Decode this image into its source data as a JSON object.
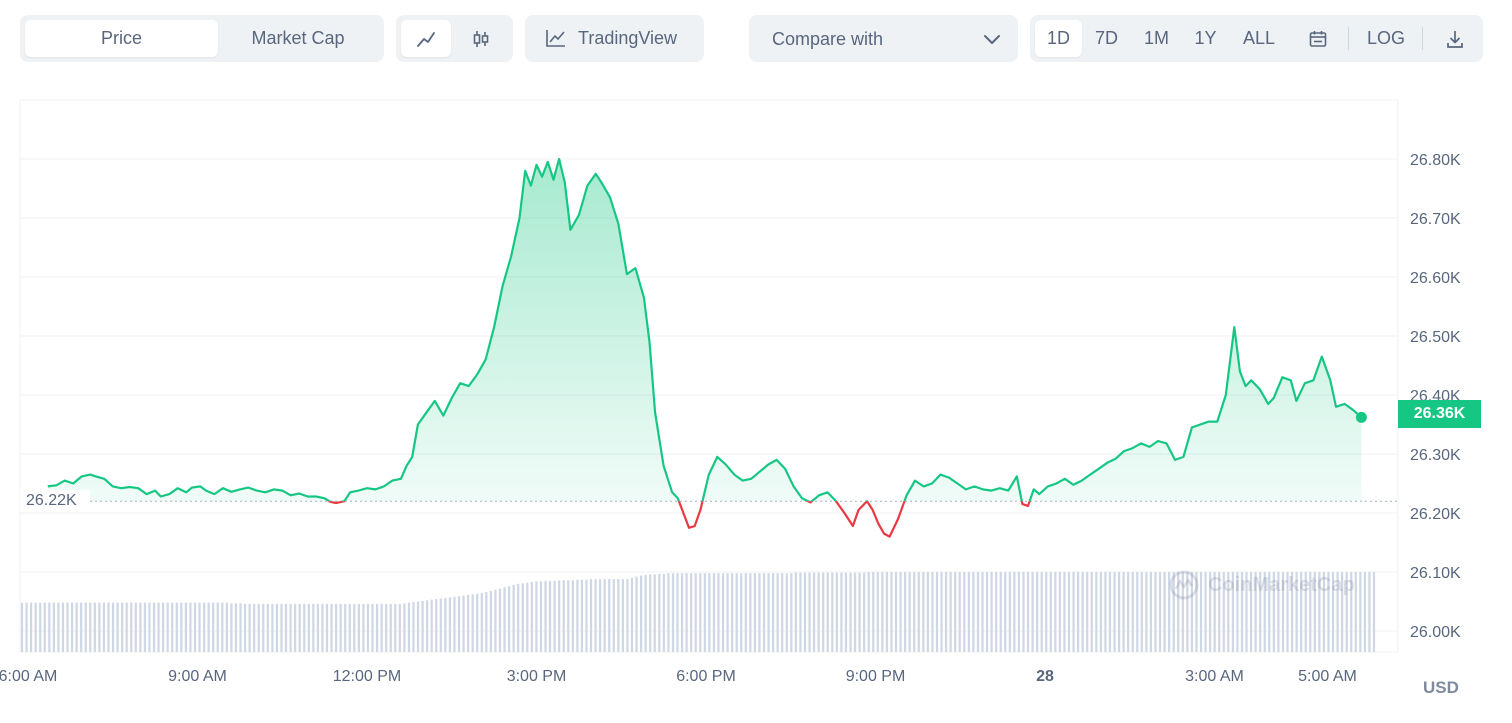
{
  "toolbar": {
    "tabs": [
      {
        "label": "Price",
        "active": true
      },
      {
        "label": "Market Cap",
        "active": false
      }
    ],
    "chart_types": [
      {
        "icon": "line-chart-icon",
        "active": true
      },
      {
        "icon": "candlestick-icon",
        "active": false
      }
    ],
    "tradingview_label": "TradingView",
    "compare_label": "Compare with",
    "timeframes": [
      {
        "label": "1D",
        "active": true
      },
      {
        "label": "7D",
        "active": false
      },
      {
        "label": "1M",
        "active": false
      },
      {
        "label": "1Y",
        "active": false
      },
      {
        "label": "ALL",
        "active": false
      }
    ],
    "log_label": "LOG"
  },
  "reference_label": "26.22K",
  "current_price_label": "26.36K",
  "currency_label": "USD",
  "watermark_text": "CoinMarketCap",
  "colors": {
    "up": "#16c784",
    "down": "#ea3943",
    "volume": "#cfd6e4",
    "grid": "#eff2f5"
  },
  "chart_data": {
    "type": "area",
    "baseline": 26220,
    "ylim": [
      25960,
      26900
    ],
    "y_ticks": [
      {
        "label": "26.80K",
        "value": 26800
      },
      {
        "label": "26.70K",
        "value": 26700
      },
      {
        "label": "26.60K",
        "value": 26600
      },
      {
        "label": "26.50K",
        "value": 26500
      },
      {
        "label": "26.40K",
        "value": 26400
      },
      {
        "label": "26.30K",
        "value": 26300
      },
      {
        "label": "26.20K",
        "value": 26200
      },
      {
        "label": "26.10K",
        "value": 26100
      },
      {
        "label": "26.00K",
        "value": 26000
      }
    ],
    "x_ticks": [
      {
        "label": "6:00 AM",
        "hour": 0,
        "bold": false
      },
      {
        "label": "9:00 AM",
        "hour": 3,
        "bold": false
      },
      {
        "label": "12:00 PM",
        "hour": 6,
        "bold": false
      },
      {
        "label": "3:00 PM",
        "hour": 9,
        "bold": false
      },
      {
        "label": "6:00 PM",
        "hour": 12,
        "bold": false
      },
      {
        "label": "9:00 PM",
        "hour": 15,
        "bold": false
      },
      {
        "label": "28",
        "hour": 18,
        "bold": true
      },
      {
        "label": "3:00 AM",
        "hour": 21,
        "bold": false
      },
      {
        "label": "5:00 AM",
        "hour": 23,
        "bold": false
      }
    ],
    "xlim_hours": [
      0,
      24
    ],
    "series": [
      {
        "values": [
          [
            0.35,
            26245
          ],
          [
            0.5,
            26247
          ],
          [
            0.65,
            26255
          ],
          [
            0.8,
            26250
          ],
          [
            0.95,
            26262
          ],
          [
            1.1,
            26265
          ],
          [
            1.2,
            26262
          ],
          [
            1.35,
            26258
          ],
          [
            1.5,
            26245
          ],
          [
            1.65,
            26242
          ],
          [
            1.8,
            26244
          ],
          [
            1.95,
            26242
          ],
          [
            2.1,
            26232
          ],
          [
            2.25,
            26238
          ],
          [
            2.35,
            26228
          ],
          [
            2.5,
            26232
          ],
          [
            2.65,
            26242
          ],
          [
            2.8,
            26235
          ],
          [
            2.9,
            26243
          ],
          [
            3.05,
            26245
          ],
          [
            3.15,
            26238
          ],
          [
            3.3,
            26232
          ],
          [
            3.45,
            26242
          ],
          [
            3.6,
            26236
          ],
          [
            3.75,
            26240
          ],
          [
            3.9,
            26243
          ],
          [
            4.05,
            26238
          ],
          [
            4.2,
            26235
          ],
          [
            4.35,
            26240
          ],
          [
            4.5,
            26238
          ],
          [
            4.65,
            26230
          ],
          [
            4.8,
            26233
          ],
          [
            4.95,
            26228
          ],
          [
            5.1,
            26228
          ],
          [
            5.25,
            26225
          ],
          [
            5.35,
            26219
          ],
          [
            5.45,
            26217
          ],
          [
            5.6,
            26220
          ],
          [
            5.7,
            26235
          ],
          [
            5.85,
            26238
          ],
          [
            6.0,
            26242
          ],
          [
            6.15,
            26240
          ],
          [
            6.3,
            26245
          ],
          [
            6.45,
            26255
          ],
          [
            6.6,
            26258
          ],
          [
            6.7,
            26280
          ],
          [
            6.8,
            26295
          ],
          [
            6.9,
            26350
          ],
          [
            7.05,
            26370
          ],
          [
            7.2,
            26390
          ],
          [
            7.35,
            26365
          ],
          [
            7.5,
            26395
          ],
          [
            7.65,
            26420
          ],
          [
            7.8,
            26415
          ],
          [
            7.95,
            26435
          ],
          [
            8.1,
            26460
          ],
          [
            8.25,
            26515
          ],
          [
            8.4,
            26585
          ],
          [
            8.55,
            26635
          ],
          [
            8.7,
            26700
          ],
          [
            8.8,
            26780
          ],
          [
            8.9,
            26755
          ],
          [
            9.0,
            26790
          ],
          [
            9.1,
            26770
          ],
          [
            9.2,
            26795
          ],
          [
            9.3,
            26765
          ],
          [
            9.4,
            26800
          ],
          [
            9.5,
            26760
          ],
          [
            9.6,
            26680
          ],
          [
            9.75,
            26705
          ],
          [
            9.9,
            26755
          ],
          [
            10.05,
            26775
          ],
          [
            10.15,
            26760
          ],
          [
            10.3,
            26735
          ],
          [
            10.45,
            26690
          ],
          [
            10.6,
            26605
          ],
          [
            10.75,
            26615
          ],
          [
            10.9,
            26565
          ],
          [
            11.0,
            26490
          ],
          [
            11.1,
            26370
          ],
          [
            11.25,
            26280
          ],
          [
            11.4,
            26235
          ],
          [
            11.5,
            26225
          ],
          [
            11.6,
            26200
          ],
          [
            11.7,
            26175
          ],
          [
            11.8,
            26178
          ],
          [
            11.9,
            26205
          ],
          [
            12.05,
            26265
          ],
          [
            12.2,
            26295
          ],
          [
            12.35,
            26282
          ],
          [
            12.5,
            26265
          ],
          [
            12.65,
            26255
          ],
          [
            12.8,
            26258
          ],
          [
            12.95,
            26270
          ],
          [
            13.1,
            26282
          ],
          [
            13.25,
            26290
          ],
          [
            13.4,
            26275
          ],
          [
            13.55,
            26245
          ],
          [
            13.7,
            26225
          ],
          [
            13.85,
            26218
          ],
          [
            14.0,
            26230
          ],
          [
            14.15,
            26235
          ],
          [
            14.3,
            26220
          ],
          [
            14.45,
            26200
          ],
          [
            14.6,
            26178
          ],
          [
            14.7,
            26205
          ],
          [
            14.85,
            26220
          ],
          [
            14.95,
            26205
          ],
          [
            15.05,
            26182
          ],
          [
            15.15,
            26165
          ],
          [
            15.25,
            26160
          ],
          [
            15.4,
            26190
          ],
          [
            15.55,
            26230
          ],
          [
            15.7,
            26255
          ],
          [
            15.85,
            26245
          ],
          [
            16.0,
            26250
          ],
          [
            16.15,
            26265
          ],
          [
            16.3,
            26260
          ],
          [
            16.45,
            26250
          ],
          [
            16.6,
            26240
          ],
          [
            16.75,
            26245
          ],
          [
            16.9,
            26240
          ],
          [
            17.05,
            26238
          ],
          [
            17.2,
            26242
          ],
          [
            17.35,
            26238
          ],
          [
            17.5,
            26262
          ],
          [
            17.6,
            26215
          ],
          [
            17.7,
            26212
          ],
          [
            17.8,
            26240
          ],
          [
            17.9,
            26232
          ],
          [
            18.05,
            26245
          ],
          [
            18.2,
            26250
          ],
          [
            18.35,
            26258
          ],
          [
            18.5,
            26248
          ],
          [
            18.65,
            26255
          ],
          [
            18.8,
            26265
          ],
          [
            18.95,
            26275
          ],
          [
            19.1,
            26285
          ],
          [
            19.25,
            26292
          ],
          [
            19.4,
            26305
          ],
          [
            19.55,
            26310
          ],
          [
            19.7,
            26318
          ],
          [
            19.85,
            26312
          ],
          [
            20.0,
            26322
          ],
          [
            20.15,
            26318
          ],
          [
            20.3,
            26290
          ],
          [
            20.45,
            26295
          ],
          [
            20.6,
            26345
          ],
          [
            20.75,
            26350
          ],
          [
            20.9,
            26355
          ],
          [
            21.05,
            26355
          ],
          [
            21.2,
            26400
          ],
          [
            21.35,
            26515
          ],
          [
            21.45,
            26440
          ],
          [
            21.55,
            26415
          ],
          [
            21.65,
            26425
          ],
          [
            21.8,
            26410
          ],
          [
            21.95,
            26385
          ],
          [
            22.05,
            26395
          ],
          [
            22.2,
            26430
          ],
          [
            22.35,
            26425
          ],
          [
            22.45,
            26390
          ],
          [
            22.6,
            26420
          ],
          [
            22.75,
            26425
          ],
          [
            22.9,
            26465
          ],
          [
            23.05,
            26425
          ],
          [
            23.15,
            26380
          ],
          [
            23.3,
            26385
          ],
          [
            23.45,
            26375
          ],
          [
            23.6,
            26362
          ]
        ]
      }
    ],
    "volume_bars": [
      26048,
      26048,
      26048,
      26048,
      26048,
      26048,
      26048,
      26048,
      26048,
      26048,
      26048,
      26048,
      26048,
      26048,
      26048,
      26048,
      26048,
      26048,
      26048,
      26048,
      26048,
      26048,
      26048,
      26048,
      26048,
      26048,
      26048,
      26048,
      26048,
      26048,
      26048,
      26048,
      26048,
      26048,
      26048,
      26048,
      26048,
      26048,
      26048,
      26048,
      26048,
      26048,
      26048,
      26048,
      26048,
      26048,
      26047,
      26047,
      26047,
      26046,
      26046,
      26046,
      26046,
      26046,
      26046,
      26046,
      26046,
      26046,
      26046,
      26046,
      26046,
      26046,
      26046,
      26046,
      26046,
      26046,
      26046,
      26046,
      26046,
      26046,
      26046,
      26046,
      26046,
      26046,
      26046,
      26046,
      26046,
      26046,
      26046,
      26046,
      26046,
      26046,
      26046,
      26046,
      26047,
      26048,
      26049,
      26050,
      26051,
      26052,
      26053,
      26054,
      26055,
      26056,
      26057,
      26058,
      26059,
      26060,
      26061,
      26062,
      26063,
      26064,
      26066,
      26068,
      26070,
      26072,
      26074,
      26076,
      26078,
      26080,
      26081,
      26082,
      26083,
      26084,
      26084,
      26085,
      26085,
      26085,
      26086,
      26086,
      26086,
      26086,
      26087,
      26087,
      26087,
      26088,
      26088,
      26088,
      26088,
      26088,
      26088,
      26088,
      26088,
      26088,
      26090,
      26092,
      26094,
      26095,
      26096,
      26096,
      26097,
      26097,
      26098,
      26098,
      26098,
      26098,
      26098,
      26098,
      26098,
      26098,
      26098,
      26098,
      26098,
      26098,
      26098,
      26098,
      26098,
      26098,
      26098,
      26098,
      26098,
      26098,
      26098,
      26098,
      26098,
      26098,
      26098,
      26098,
      26098,
      26098,
      26099,
      26099,
      26099,
      26099,
      26099,
      26099,
      26099,
      26099,
      26099,
      26099,
      26099,
      26099,
      26099,
      26099,
      26099,
      26099,
      26100,
      26100,
      26100,
      26100,
      26100,
      26100,
      26100,
      26100,
      26100,
      26100,
      26100,
      26100,
      26100,
      26100,
      26100,
      26100,
      26100,
      26100,
      26100,
      26100,
      26100,
      26100,
      26100,
      26100,
      26100,
      26100,
      26100,
      26100,
      26100,
      26100,
      26100,
      26100,
      26100,
      26100,
      26100,
      26100,
      26100,
      26100,
      26100,
      26100,
      26100,
      26100,
      26100,
      26100,
      26100,
      26100,
      26100,
      26100,
      26100,
      26100,
      26100,
      26100,
      26100,
      26100,
      26100,
      26100,
      26100,
      26100,
      26100,
      26100,
      26100,
      26100,
      26100,
      26100,
      26100,
      26100,
      26100,
      26100,
      26100,
      26100,
      26100,
      26100,
      26100,
      26100,
      26100,
      26100,
      26100,
      26100,
      26100,
      26100,
      26100,
      26100,
      26100,
      26100,
      26100,
      26100,
      26100,
      26100,
      26100,
      26100,
      26100,
      26100,
      26100,
      26100,
      26100,
      26100,
      26100,
      26100,
      26100,
      26100,
      26100,
      26100,
      26100,
      26100,
      26100,
      26100,
      26100,
      26100,
      26100,
      26100,
      26100,
      26100
    ]
  }
}
